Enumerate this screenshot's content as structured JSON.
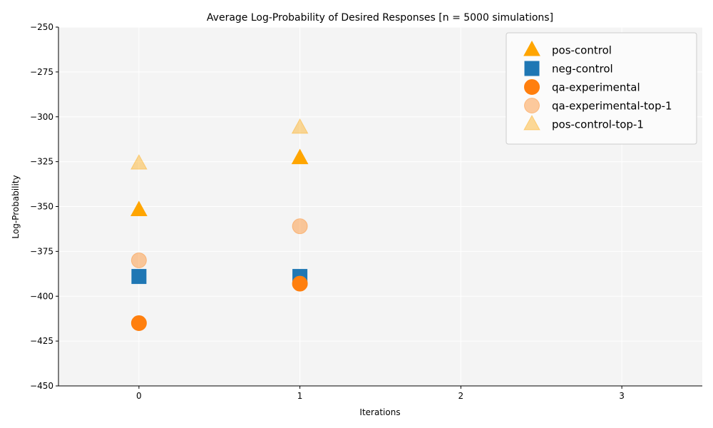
{
  "chart_data": {
    "type": "scatter",
    "title": "Average Log-Probability of Desired Responses [n = 5000 simulations]",
    "xlabel": "Iterations",
    "ylabel": "Log-Probability",
    "xlim": [
      -0.5,
      3.5
    ],
    "ylim": [
      -450,
      -250
    ],
    "xticks": [
      0,
      1,
      2,
      3
    ],
    "yticks": [
      -450,
      -425,
      -400,
      -375,
      -350,
      -325,
      -300,
      -275,
      -250
    ],
    "grid": true,
    "legend_position": "top-right",
    "series": [
      {
        "name": "pos-control",
        "marker": "triangle",
        "color": "#FFA500",
        "opacity": 1.0,
        "x": [
          0,
          1
        ],
        "y": [
          -352,
          -323
        ]
      },
      {
        "name": "neg-control",
        "marker": "square",
        "color": "#1F77B4",
        "opacity": 1.0,
        "x": [
          0,
          1
        ],
        "y": [
          -389,
          -389
        ]
      },
      {
        "name": "qa-experimental",
        "marker": "circle",
        "color": "#FF7F0E",
        "opacity": 1.0,
        "x": [
          0,
          1
        ],
        "y": [
          -415,
          -393
        ]
      },
      {
        "name": "qa-experimental-top-1",
        "marker": "circle",
        "color": "#FF7F0E",
        "opacity": 0.4,
        "x": [
          0,
          1
        ],
        "y": [
          -380,
          -361
        ]
      },
      {
        "name": "pos-control-top-1",
        "marker": "triangle",
        "color": "#FFA500",
        "opacity": 0.4,
        "x": [
          0,
          1
        ],
        "y": [
          -326,
          -306
        ]
      }
    ]
  }
}
